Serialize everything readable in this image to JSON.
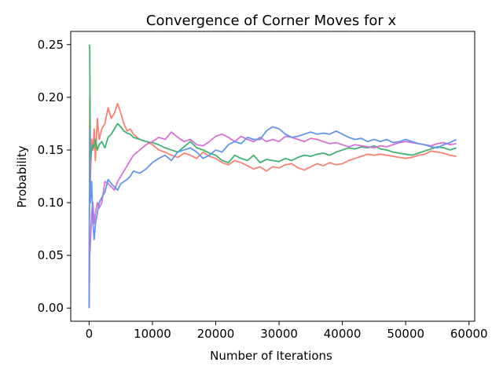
{
  "chart_data": {
    "type": "line",
    "title": "Convergence of Corner Moves for x",
    "xlabel": "Number of Iterations",
    "ylabel": "Probability",
    "xlim": [
      -2900,
      60900
    ],
    "ylim": [
      -0.0125,
      0.2625
    ],
    "xticks": [
      0,
      10000,
      20000,
      30000,
      40000,
      50000,
      60000
    ],
    "yticks": [
      0.0,
      0.05,
      0.1,
      0.15,
      0.2,
      0.25
    ],
    "xtick_labels": [
      "0",
      "10000",
      "20000",
      "30000",
      "40000",
      "50000",
      "60000"
    ],
    "ytick_labels": [
      "0.00",
      "0.05",
      "0.10",
      "0.15",
      "0.20",
      "0.25"
    ],
    "grid": false,
    "legend": false,
    "series": [
      {
        "color": "#fa8072",
        "x": [
          0,
          100,
          200,
          400,
          600,
          800,
          1000,
          1300,
          1600,
          2000,
          2500,
          3000,
          3500,
          4000,
          4500,
          5000,
          5500,
          6000,
          6500,
          7000,
          8000,
          9000,
          10000,
          11000,
          12000,
          13000,
          14000,
          15000,
          16000,
          17000,
          18000,
          19000,
          20000,
          21000,
          22000,
          23000,
          24000,
          25000,
          26000,
          27000,
          28000,
          29000,
          30000,
          31000,
          32000,
          33000,
          34000,
          35000,
          36000,
          37000,
          38000,
          39000,
          40000,
          41000,
          42000,
          43000,
          44000,
          45000,
          46000,
          47000,
          48000,
          49000,
          50000,
          51000,
          52000,
          53000,
          54000,
          55000,
          56000,
          57000,
          58000
        ],
        "values": [
          0.0,
          0.2,
          0.12,
          0.16,
          0.15,
          0.17,
          0.14,
          0.18,
          0.16,
          0.17,
          0.175,
          0.19,
          0.18,
          0.185,
          0.194,
          0.185,
          0.175,
          0.168,
          0.17,
          0.165,
          0.16,
          0.158,
          0.155,
          0.15,
          0.148,
          0.145,
          0.143,
          0.147,
          0.145,
          0.142,
          0.148,
          0.144,
          0.142,
          0.138,
          0.136,
          0.14,
          0.138,
          0.135,
          0.132,
          0.134,
          0.13,
          0.134,
          0.133,
          0.136,
          0.137,
          0.133,
          0.131,
          0.134,
          0.137,
          0.135,
          0.138,
          0.136,
          0.137,
          0.14,
          0.142,
          0.144,
          0.146,
          0.145,
          0.146,
          0.145,
          0.144,
          0.143,
          0.142,
          0.143,
          0.145,
          0.146,
          0.149,
          0.148,
          0.147,
          0.145,
          0.144
        ]
      },
      {
        "color": "#3cb371",
        "x": [
          0,
          100,
          200,
          400,
          600,
          800,
          1000,
          1300,
          1600,
          2000,
          2500,
          3000,
          3500,
          4000,
          4500,
          5000,
          5500,
          6000,
          6500,
          7000,
          8000,
          9000,
          10000,
          11000,
          12000,
          13000,
          14000,
          15000,
          16000,
          17000,
          18000,
          19000,
          20000,
          21000,
          22000,
          23000,
          24000,
          25000,
          26000,
          27000,
          28000,
          29000,
          30000,
          31000,
          32000,
          33000,
          34000,
          35000,
          36000,
          37000,
          38000,
          39000,
          40000,
          41000,
          42000,
          43000,
          44000,
          45000,
          46000,
          47000,
          48000,
          49000,
          50000,
          51000,
          52000,
          53000,
          54000,
          55000,
          56000,
          57000,
          58000
        ],
        "values": [
          0.25,
          0.248,
          0.14,
          0.15,
          0.155,
          0.152,
          0.16,
          0.15,
          0.155,
          0.158,
          0.152,
          0.162,
          0.165,
          0.17,
          0.175,
          0.172,
          0.168,
          0.166,
          0.165,
          0.162,
          0.16,
          0.158,
          0.157,
          0.155,
          0.152,
          0.15,
          0.148,
          0.153,
          0.158,
          0.152,
          0.15,
          0.147,
          0.145,
          0.14,
          0.138,
          0.145,
          0.142,
          0.14,
          0.145,
          0.138,
          0.141,
          0.14,
          0.139,
          0.142,
          0.14,
          0.143,
          0.145,
          0.144,
          0.146,
          0.147,
          0.145,
          0.148,
          0.15,
          0.152,
          0.151,
          0.153,
          0.152,
          0.154,
          0.151,
          0.15,
          0.148,
          0.147,
          0.146,
          0.145,
          0.147,
          0.149,
          0.151,
          0.153,
          0.152,
          0.15,
          0.152
        ]
      },
      {
        "color": "#da70d6",
        "x": [
          0,
          100,
          200,
          400,
          600,
          800,
          1000,
          1300,
          1600,
          2000,
          2500,
          3000,
          3500,
          4000,
          4500,
          5000,
          5500,
          6000,
          6500,
          7000,
          8000,
          9000,
          10000,
          11000,
          12000,
          13000,
          14000,
          15000,
          16000,
          17000,
          18000,
          19000,
          20000,
          21000,
          22000,
          23000,
          24000,
          25000,
          26000,
          27000,
          28000,
          29000,
          30000,
          31000,
          32000,
          33000,
          34000,
          35000,
          36000,
          37000,
          38000,
          39000,
          40000,
          41000,
          42000,
          43000,
          44000,
          45000,
          46000,
          47000,
          48000,
          49000,
          50000,
          51000,
          52000,
          53000,
          54000,
          55000,
          56000,
          57000,
          58000
        ],
        "values": [
          0.0,
          0.05,
          0.06,
          0.09,
          0.1,
          0.08,
          0.09,
          0.1,
          0.095,
          0.1,
          0.12,
          0.118,
          0.115,
          0.112,
          0.12,
          0.125,
          0.13,
          0.135,
          0.14,
          0.145,
          0.15,
          0.155,
          0.158,
          0.162,
          0.16,
          0.167,
          0.162,
          0.158,
          0.16,
          0.155,
          0.154,
          0.158,
          0.163,
          0.165,
          0.162,
          0.158,
          0.163,
          0.16,
          0.158,
          0.162,
          0.158,
          0.16,
          0.158,
          0.163,
          0.162,
          0.16,
          0.158,
          0.161,
          0.16,
          0.158,
          0.156,
          0.157,
          0.155,
          0.153,
          0.155,
          0.154,
          0.153,
          0.152,
          0.154,
          0.153,
          0.155,
          0.157,
          0.158,
          0.157,
          0.156,
          0.155,
          0.154,
          0.156,
          0.157,
          0.155,
          0.156
        ]
      },
      {
        "color": "#6495ed",
        "x": [
          0,
          100,
          200,
          400,
          600,
          800,
          1000,
          1300,
          1600,
          2000,
          2500,
          3000,
          3500,
          4000,
          4500,
          5000,
          5500,
          6000,
          6500,
          7000,
          8000,
          9000,
          10000,
          11000,
          12000,
          13000,
          14000,
          15000,
          16000,
          17000,
          18000,
          19000,
          20000,
          21000,
          22000,
          23000,
          24000,
          25000,
          26000,
          27000,
          28000,
          29000,
          30000,
          31000,
          32000,
          33000,
          34000,
          35000,
          36000,
          37000,
          38000,
          39000,
          40000,
          41000,
          42000,
          43000,
          44000,
          45000,
          46000,
          47000,
          48000,
          49000,
          50000,
          51000,
          52000,
          53000,
          54000,
          55000,
          56000,
          57000,
          58000
        ],
        "values": [
          0.0,
          0.17,
          0.1,
          0.12,
          0.08,
          0.065,
          0.08,
          0.09,
          0.1,
          0.105,
          0.11,
          0.122,
          0.118,
          0.115,
          0.112,
          0.118,
          0.12,
          0.122,
          0.125,
          0.13,
          0.128,
          0.132,
          0.138,
          0.142,
          0.145,
          0.14,
          0.148,
          0.15,
          0.152,
          0.148,
          0.142,
          0.145,
          0.15,
          0.148,
          0.155,
          0.158,
          0.156,
          0.162,
          0.16,
          0.16,
          0.168,
          0.172,
          0.17,
          0.165,
          0.162,
          0.163,
          0.165,
          0.167,
          0.165,
          0.166,
          0.165,
          0.168,
          0.165,
          0.162,
          0.16,
          0.161,
          0.158,
          0.16,
          0.158,
          0.16,
          0.157,
          0.158,
          0.16,
          0.158,
          0.156,
          0.155,
          0.153,
          0.152,
          0.155,
          0.157,
          0.16
        ]
      }
    ]
  }
}
